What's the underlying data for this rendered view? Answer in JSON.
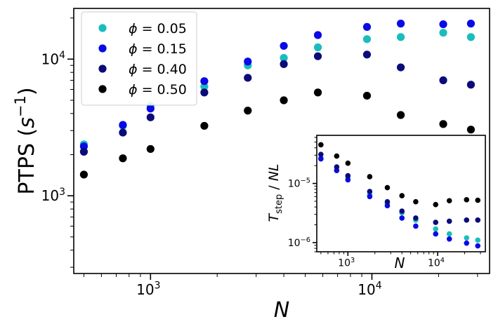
{
  "chart_data": [
    {
      "type": "scatter",
      "scale": "log-log",
      "xlabel": "N",
      "ylabel": "PTPS (s⁻¹)",
      "ylabel_parts": {
        "main": "PTPS (",
        "italic": "s",
        "sup": "−1",
        "close": ")"
      },
      "xlim": [
        450,
        34000
      ],
      "ylim": [
        270,
        23500
      ],
      "x_major_ticks": [
        {
          "value": 1000,
          "mant": "10",
          "exp": "3"
        },
        {
          "value": 10000,
          "mant": "10",
          "exp": "4"
        }
      ],
      "y_major_ticks": [
        {
          "value": 1000,
          "mant": "10",
          "exp": "3"
        },
        {
          "value": 10000,
          "mant": "10",
          "exp": "4"
        }
      ],
      "legend_location": "upper-left",
      "x": [
        500,
        750,
        1000,
        1750,
        2750,
        4000,
        5700,
        9500,
        13500,
        21000,
        28000
      ],
      "series": [
        {
          "name": "ϕ = 0.05",
          "label_phi": "ϕ",
          "label_value": "= 0.05",
          "color": "#1bbcbc",
          "values": [
            2380,
            3250,
            4550,
            6300,
            9000,
            10200,
            12200,
            14000,
            14500,
            15600,
            14500
          ]
        },
        {
          "name": "ϕ = 0.15",
          "label_phi": "ϕ",
          "label_value": "= 0.15",
          "color": "#0a0ae6",
          "values": [
            2300,
            3300,
            4350,
            6900,
            9600,
            12500,
            15000,
            17200,
            18200,
            18000,
            18200
          ]
        },
        {
          "name": "ϕ = 0.40",
          "label_phi": "ϕ",
          "label_value": "= 0.40",
          "color": "#0b0b7a",
          "values": [
            2100,
            2900,
            3750,
            5700,
            7300,
            9200,
            10500,
            10800,
            8700,
            7000,
            6500
          ]
        },
        {
          "name": "ϕ = 0.50",
          "label_phi": "ϕ",
          "label_value": "= 0.50",
          "color": "#000000",
          "values": [
            1430,
            1880,
            2200,
            3250,
            4200,
            5000,
            5700,
            5400,
            3900,
            3350,
            3050
          ]
        }
      ]
    },
    {
      "type": "scatter",
      "scale": "log-log",
      "inset": true,
      "xlabel": "N",
      "ylabel": "T_step / NL",
      "ylabel_parts": {
        "T": "T",
        "sub": "step",
        "rest": " / ",
        "NL": "NL"
      },
      "xlim": [
        450,
        34000
      ],
      "ylim": [
        7e-07,
        6.5e-05
      ],
      "x_major_ticks": [
        {
          "value": 1000,
          "mant": "10",
          "exp": "3"
        },
        {
          "value": 10000,
          "mant": "10",
          "exp": "4"
        }
      ],
      "y_major_ticks": [
        {
          "value": 1e-05,
          "mant": "10",
          "exp": "−5"
        },
        {
          "value": 1e-06,
          "mant": "10",
          "exp": "−6"
        }
      ],
      "x": [
        500,
        750,
        1000,
        1750,
        2750,
        4000,
        5700,
        9500,
        13500,
        21000,
        28000
      ],
      "series": [
        {
          "name": "ϕ = 0.05",
          "color": "#1bbcbc",
          "values": [
            2.7e-05,
            1.7e-05,
            1.25e-05,
            6.5e-06,
            4.6e-06,
            3.2e-06,
            2.4e-06,
            1.7e-06,
            1.4e-06,
            1.2e-06,
            1.1e-06
          ]
        },
        {
          "name": "ϕ = 0.15",
          "color": "#0a0ae6",
          "values": [
            2.6e-05,
            1.65e-05,
            1.15e-05,
            6e-06,
            4.2e-06,
            2.6e-06,
            1.9e-06,
            1.4e-06,
            1.15e-06,
            9.8e-07,
            8.8e-07
          ]
        },
        {
          "name": "ϕ = 0.40",
          "color": "#0b0b7a",
          "values": [
            3.1e-05,
            1.9e-05,
            1.35e-05,
            7.3e-06,
            4.9e-06,
            3.4e-06,
            2.6e-06,
            2.2e-06,
            2.3e-06,
            2.4e-06,
            2.4e-06
          ]
        },
        {
          "name": "ϕ = 0.50",
          "color": "#000000",
          "values": [
            4.5e-05,
            2.9e-05,
            2.2e-05,
            1.3e-05,
            8.5e-06,
            6.2e-06,
            4.9e-06,
            4.4e-06,
            5.1e-06,
            5.3e-06,
            5.2e-06
          ]
        }
      ]
    }
  ]
}
